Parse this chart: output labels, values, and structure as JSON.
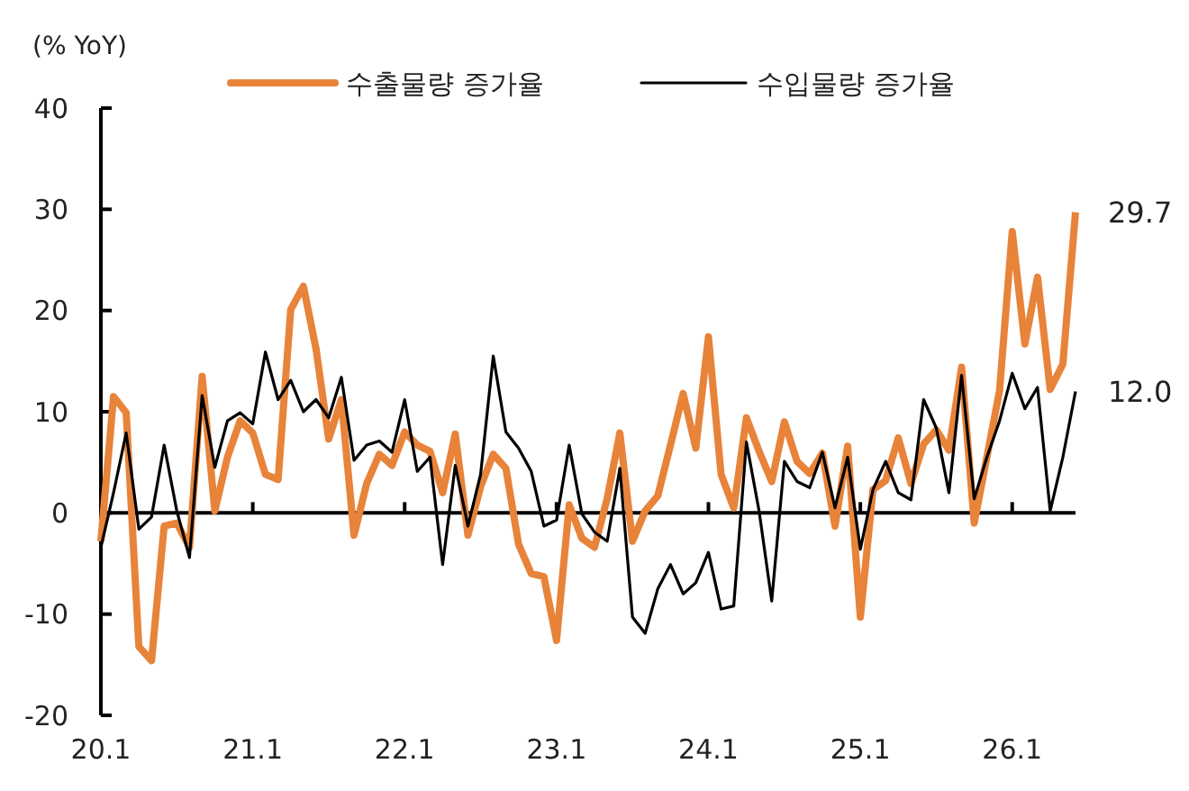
{
  "chart_data": {
    "type": "line",
    "ylabel": "(% YoY)",
    "legend": "top",
    "ylim": [
      -20,
      40
    ],
    "yticks": [
      -20,
      -10,
      0,
      10,
      20,
      30,
      40
    ],
    "categories": [
      "20.1",
      null,
      null,
      null,
      null,
      null,
      null,
      null,
      null,
      null,
      null,
      null,
      "21.1",
      null,
      null,
      null,
      null,
      null,
      null,
      null,
      null,
      null,
      null,
      null,
      "22.1",
      null,
      null,
      null,
      null,
      null,
      null,
      null,
      null,
      null,
      null,
      null,
      "23.1",
      null,
      null,
      null,
      null,
      null,
      null,
      null,
      null,
      null,
      null,
      null,
      "24.1",
      null,
      null,
      null,
      null,
      null,
      null,
      null,
      null,
      null,
      null,
      null,
      "25.1",
      null,
      null,
      null,
      null,
      null,
      null,
      null,
      null,
      null,
      null,
      null,
      "26.1",
      null,
      null,
      null,
      null,
      null
    ],
    "series": [
      {
        "name": "수출물량 증가율",
        "color": "#e8833a",
        "values": [
          -2.8,
          11.5,
          9.9,
          -13.2,
          -14.6,
          -1.3,
          -1,
          -3.4,
          13.5,
          0.2,
          5.5,
          9.1,
          7.9,
          3.8,
          3.3,
          20.1,
          22.4,
          16.2,
          7.3,
          11.2,
          -2.2,
          2.9,
          5.8,
          4.7,
          8,
          6.7,
          6.1,
          2,
          7.8,
          -2.2,
          2.6,
          5.8,
          4.4,
          -3.1,
          -6,
          -6.3,
          -12.6,
          0.8,
          -2.5,
          -3.4,
          1.4,
          7.9,
          -2.8,
          0.2,
          1.7,
          6.7,
          11.8,
          6.4,
          17.4,
          3.8,
          0.5,
          9.4,
          6.1,
          3.1,
          9,
          5.1,
          3.9,
          5.9,
          -1.3,
          6.6,
          -10.3,
          2.3,
          3.2,
          7.4,
          2.9,
          6.8,
          8.2,
          6.2,
          14.4,
          -1,
          5.5,
          12.1,
          27.8,
          16.7,
          23.3,
          12.2,
          14.7,
          29.7
        ],
        "value_labels": [
          null,
          null,
          null,
          null,
          null,
          null,
          null,
          null,
          null,
          null,
          null,
          null,
          null,
          null,
          null,
          null,
          null,
          null,
          null,
          null,
          null,
          null,
          null,
          null,
          null,
          null,
          null,
          null,
          null,
          null,
          null,
          null,
          null,
          null,
          null,
          null,
          null,
          null,
          null,
          null,
          null,
          null,
          null,
          null,
          null,
          null,
          null,
          null,
          null,
          null,
          null,
          null,
          null,
          null,
          null,
          null,
          null,
          null,
          null,
          null,
          null,
          null,
          null,
          null,
          null,
          null,
          null,
          null,
          null,
          null,
          null,
          null,
          null,
          null,
          null,
          null,
          null,
          "29.7"
        ]
      },
      {
        "name": "수입물량 증가율",
        "color": "#000000",
        "values": [
          -3.4,
          2,
          7.9,
          -1.6,
          -0.4,
          6.7,
          0.2,
          -4.4,
          11.6,
          4.5,
          9.1,
          9.9,
          8.8,
          15.9,
          11.2,
          13.1,
          10,
          11.2,
          9.4,
          13.4,
          5.2,
          6.7,
          7.1,
          6,
          11.2,
          4.1,
          5.5,
          -5.1,
          4.7,
          -1.3,
          3.8,
          15.5,
          8,
          6.4,
          4.1,
          -1.3,
          -0.7,
          6.7,
          -0.1,
          -1.9,
          -2.8,
          4.4,
          -10.3,
          -11.9,
          -7.5,
          -5.1,
          -8,
          -6.9,
          -3.9,
          -9.5,
          -9.2,
          7,
          0.2,
          -8.7,
          5.1,
          3.1,
          2.5,
          6,
          0.5,
          5.5,
          -3.6,
          2.3,
          5.1,
          2,
          1.3,
          11.2,
          8.4,
          2,
          13.6,
          1.4,
          5.5,
          9.1,
          13.8,
          10.3,
          12.4,
          0.2,
          5.5,
          12
        ],
        "value_labels": [
          null,
          null,
          null,
          null,
          null,
          null,
          null,
          null,
          null,
          null,
          null,
          null,
          null,
          null,
          null,
          null,
          null,
          null,
          null,
          null,
          null,
          null,
          null,
          null,
          null,
          null,
          null,
          null,
          null,
          null,
          null,
          null,
          null,
          null,
          null,
          null,
          null,
          null,
          null,
          null,
          null,
          null,
          null,
          null,
          null,
          null,
          null,
          null,
          null,
          null,
          null,
          null,
          null,
          null,
          null,
          null,
          null,
          null,
          null,
          null,
          null,
          null,
          null,
          null,
          null,
          null,
          null,
          null,
          null,
          null,
          null,
          null,
          null,
          null,
          null,
          null,
          null,
          "12.0"
        ]
      }
    ]
  }
}
